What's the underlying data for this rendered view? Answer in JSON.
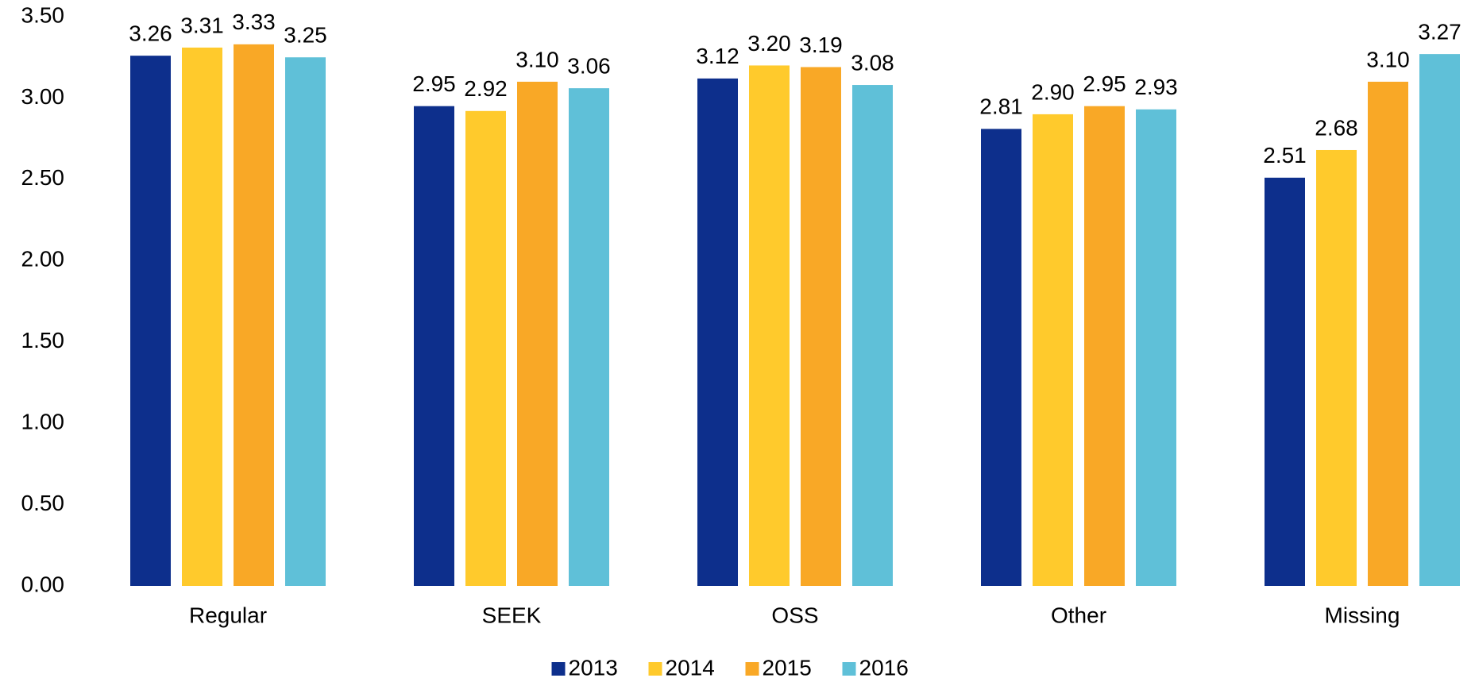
{
  "chart_data": {
    "type": "bar",
    "categories": [
      "Regular",
      "SEEK",
      "OSS",
      "Other",
      "Missing"
    ],
    "series": [
      {
        "name": "2013",
        "color": "#0d2f8c",
        "values": [
          3.26,
          2.95,
          3.12,
          2.81,
          2.51
        ],
        "value_labels": [
          "3.26",
          "2.95",
          "3.12",
          "2.81",
          "2.51"
        ]
      },
      {
        "name": "2014",
        "color": "#ffca2c",
        "values": [
          3.31,
          2.92,
          3.2,
          2.9,
          2.68
        ],
        "value_labels": [
          "3.31",
          "2.92",
          "3.20",
          "2.90",
          "2.68"
        ]
      },
      {
        "name": "2015",
        "color": "#f9a826",
        "values": [
          3.33,
          3.1,
          3.19,
          2.95,
          3.1
        ],
        "value_labels": [
          "3.33",
          "3.10",
          "3.19",
          "2.95",
          "3.10"
        ]
      },
      {
        "name": "2016",
        "color": "#5fc0d8",
        "values": [
          3.25,
          3.06,
          3.08,
          2.93,
          3.27
        ],
        "value_labels": [
          "3.25",
          "3.06",
          "3.08",
          "2.93",
          "3.27"
        ]
      }
    ],
    "ylim": [
      0,
      3.5
    ],
    "yticks": [
      {
        "value": 0,
        "label": "0.00"
      },
      {
        "value": 0.5,
        "label": "0.50"
      },
      {
        "value": 1,
        "label": "1.00"
      },
      {
        "value": 1.5,
        "label": "1.50"
      },
      {
        "value": 2,
        "label": "2.00"
      },
      {
        "value": 2.5,
        "label": "2.50"
      },
      {
        "value": 3,
        "label": "3.00"
      },
      {
        "value": 3.5,
        "label": "3.50"
      }
    ],
    "grid": false,
    "legend": "bottom"
  }
}
